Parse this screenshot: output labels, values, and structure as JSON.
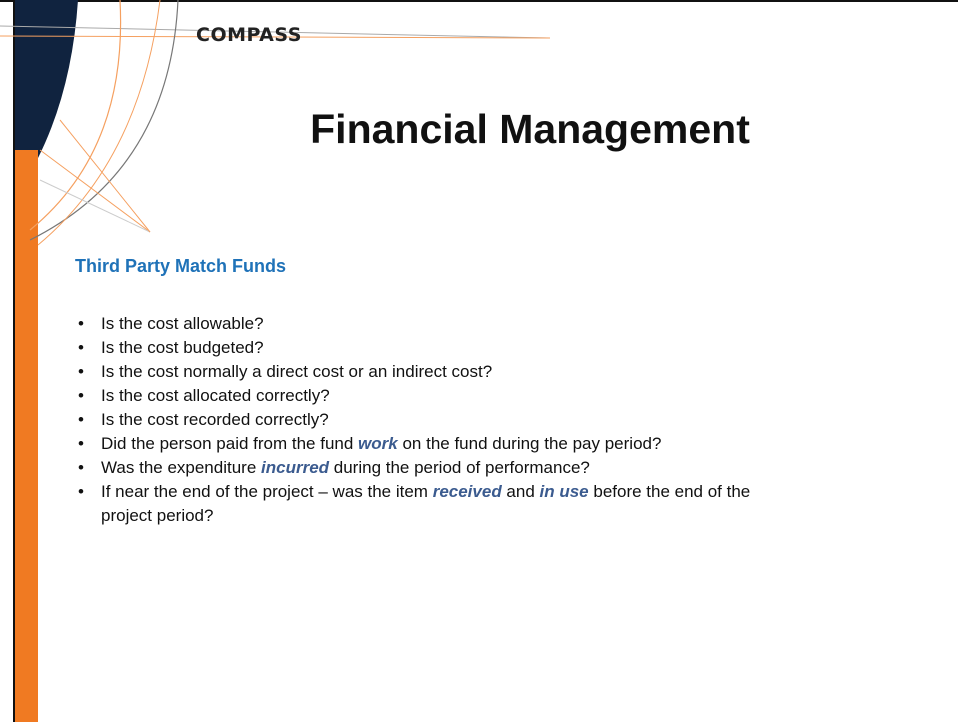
{
  "logo": "COMPASS",
  "title": "Financial Management",
  "subtitle": "Third Party Match Funds",
  "emphasis_color": "#3b5b8f",
  "bullets": [
    [
      {
        "text": "Is the cost allowable?"
      }
    ],
    [
      {
        "text": "Is the cost budgeted?"
      }
    ],
    [
      {
        "text": "Is the cost normally a direct cost or an indirect cost?"
      }
    ],
    [
      {
        "text": "Is the cost allocated correctly?"
      }
    ],
    [
      {
        "text": "Is the cost recorded correctly?"
      }
    ],
    [
      {
        "text": "Did the person paid from the fund "
      },
      {
        "text": "work",
        "em": true
      },
      {
        "text": " on the fund during the pay period?"
      }
    ],
    [
      {
        "text": "Was the expenditure "
      },
      {
        "text": "incurred",
        "em": true
      },
      {
        "text": " during the period of performance?"
      }
    ],
    [
      {
        "text": "If near the end of the project – was the item "
      },
      {
        "text": "received",
        "em": true
      },
      {
        "text": " and "
      },
      {
        "text": "in use",
        "em": true
      },
      {
        "text": " before the end of the project period?"
      }
    ]
  ]
}
